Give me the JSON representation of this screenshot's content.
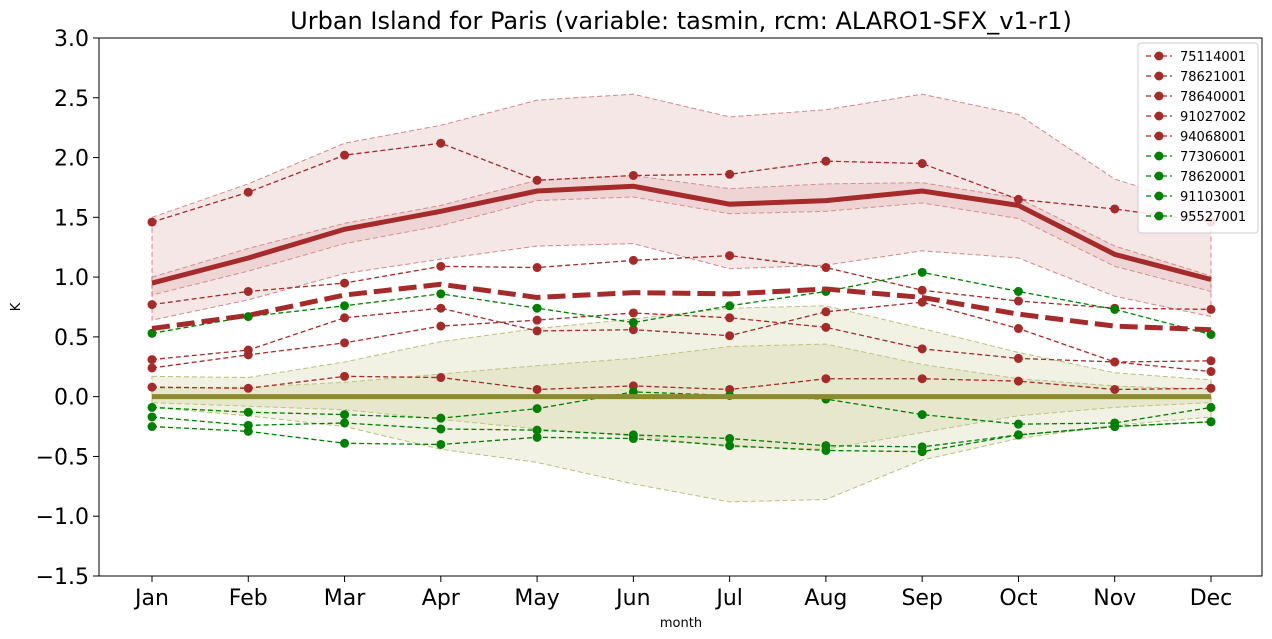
{
  "chart_data": {
    "type": "line",
    "title": "Urban Island for Paris (variable: tasmin, rcm: ALARO1-SFX_v1-r1)",
    "xlabel": "month",
    "ylabel": "K",
    "categories": [
      "Jan",
      "Feb",
      "Mar",
      "Apr",
      "May",
      "Jun",
      "Jul",
      "Aug",
      "Sep",
      "Oct",
      "Nov",
      "Dec"
    ],
    "ylim": [
      -1.5,
      3.0
    ],
    "yticks": [
      -1.5,
      -1.0,
      -0.5,
      0.0,
      0.5,
      1.0,
      1.5,
      2.0,
      2.5,
      3.0
    ],
    "ytick_labels": [
      "−1.5",
      "−1.0",
      "−0.5",
      "0.0",
      "0.5",
      "1.0",
      "1.5",
      "2.0",
      "2.5",
      "3.0"
    ],
    "grid": false,
    "legend_position": "top-right",
    "colors": {
      "urban": "#a52a2a",
      "rural": "#008000",
      "ref": "#8b8b2e",
      "urban_fill": "#e8c4c4",
      "rural_fill": "#d9d9b3"
    },
    "urban_bands": {
      "outer_upper": [
        1.5,
        1.78,
        2.12,
        2.27,
        2.48,
        2.53,
        2.34,
        2.4,
        2.53,
        2.36,
        1.82,
        1.57
      ],
      "outer_lower": [
        0.64,
        0.81,
        1.03,
        1.15,
        1.26,
        1.28,
        1.07,
        1.1,
        1.22,
        1.16,
        0.84,
        0.67
      ],
      "inner_upper": [
        1.0,
        1.24,
        1.45,
        1.6,
        1.81,
        1.85,
        1.74,
        1.78,
        1.79,
        1.66,
        1.26,
        1.01
      ],
      "inner_lower": [
        0.85,
        1.05,
        1.28,
        1.43,
        1.64,
        1.67,
        1.53,
        1.55,
        1.62,
        1.49,
        1.09,
        0.88
      ]
    },
    "rural_bands": {
      "outer_upper": [
        0.17,
        0.16,
        0.29,
        0.46,
        0.57,
        0.65,
        0.74,
        0.76,
        0.57,
        0.37,
        0.2,
        0.14
      ],
      "outer_lower": [
        -0.09,
        -0.16,
        -0.25,
        -0.44,
        -0.55,
        -0.73,
        -0.88,
        -0.86,
        -0.53,
        -0.35,
        -0.24,
        -0.17
      ],
      "inner_upper": [
        0.07,
        0.08,
        0.12,
        0.19,
        0.26,
        0.32,
        0.42,
        0.44,
        0.27,
        0.15,
        0.09,
        0.06
      ],
      "inner_lower": [
        -0.05,
        -0.08,
        -0.11,
        -0.19,
        -0.27,
        -0.33,
        -0.42,
        -0.44,
        -0.3,
        -0.16,
        -0.09,
        -0.05
      ]
    },
    "series": [
      {
        "name": "75114001",
        "group": "urban",
        "values": [
          1.46,
          1.71,
          2.02,
          2.12,
          1.81,
          1.85,
          1.86,
          1.97,
          1.95,
          1.65,
          1.57,
          1.46
        ]
      },
      {
        "name": "78621001",
        "group": "urban",
        "values": [
          0.31,
          0.39,
          0.66,
          0.74,
          0.55,
          0.56,
          0.51,
          0.71,
          0.79,
          0.57,
          0.29,
          0.3
        ]
      },
      {
        "name": "78640001",
        "group": "urban",
        "values": [
          0.08,
          0.07,
          0.17,
          0.16,
          0.06,
          0.09,
          0.06,
          0.15,
          0.15,
          0.13,
          0.06,
          0.07
        ]
      },
      {
        "name": "91027002",
        "group": "urban",
        "values": [
          0.24,
          0.35,
          0.45,
          0.59,
          0.64,
          0.7,
          0.66,
          0.58,
          0.4,
          0.32,
          0.29,
          0.21
        ]
      },
      {
        "name": "94068001",
        "group": "urban",
        "values": [
          0.77,
          0.88,
          0.95,
          1.09,
          1.08,
          1.14,
          1.18,
          1.08,
          0.89,
          0.8,
          0.74,
          0.73
        ]
      },
      {
        "name": "77306001",
        "group": "rural",
        "values": [
          0.53,
          0.67,
          0.76,
          0.86,
          0.74,
          0.62,
          0.76,
          0.88,
          1.04,
          0.88,
          0.73,
          0.52
        ]
      },
      {
        "name": "78620001",
        "group": "rural",
        "values": [
          -0.09,
          -0.13,
          -0.15,
          -0.18,
          -0.1,
          0.04,
          0.01,
          -0.02,
          -0.15,
          -0.23,
          -0.22,
          -0.09
        ]
      },
      {
        "name": "91103001",
        "group": "rural",
        "values": [
          -0.17,
          -0.24,
          -0.22,
          -0.27,
          -0.28,
          -0.32,
          -0.35,
          -0.41,
          -0.42,
          -0.32,
          -0.25,
          -0.21
        ]
      },
      {
        "name": "95527001",
        "group": "rural",
        "values": [
          -0.25,
          -0.29,
          -0.39,
          -0.4,
          -0.34,
          -0.35,
          -0.41,
          -0.45,
          -0.46,
          -0.32,
          -0.25,
          -0.21
        ]
      }
    ],
    "urban_mean": [
      0.95,
      1.16,
      1.4,
      1.55,
      1.72,
      1.76,
      1.61,
      1.64,
      1.72,
      1.6,
      1.19,
      0.98
    ],
    "urban_median_dashed": [
      0.57,
      0.68,
      0.85,
      0.94,
      0.83,
      0.87,
      0.86,
      0.9,
      0.83,
      0.69,
      0.59,
      0.56
    ],
    "rural_mean": [
      0.0,
      0.0,
      0.0,
      0.0,
      0.0,
      0.0,
      0.0,
      0.0,
      0.0,
      0.0,
      0.0,
      0.0
    ]
  }
}
